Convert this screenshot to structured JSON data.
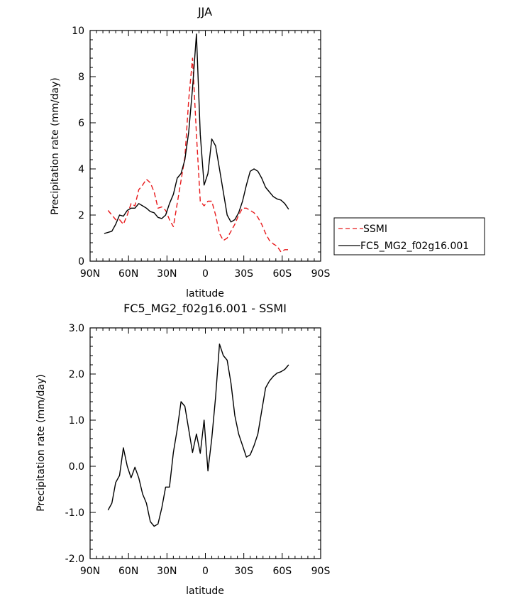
{
  "chart_data": [
    {
      "type": "line",
      "title": "JJA",
      "xlabel": "latitude",
      "ylabel": "Precipitation rate (mm/day)",
      "xlim": [
        90,
        -90
      ],
      "ylim": [
        0,
        10
      ],
      "x_ticks": [
        90,
        60,
        30,
        0,
        -30,
        -60,
        -90
      ],
      "x_tick_labels": [
        "90N",
        "60N",
        "30N",
        "0",
        "30S",
        "60S",
        "90S"
      ],
      "y_ticks": [
        0,
        2,
        4,
        6,
        8,
        10
      ],
      "y_tick_labels": [
        "0",
        "2",
        "4",
        "6",
        "8",
        "10"
      ],
      "legend_position": "right",
      "series": [
        {
          "name": "SSMI",
          "color": "#e8191b",
          "dash": "dashed",
          "x": [
            76,
            73,
            70,
            67,
            64,
            61,
            58,
            55,
            52,
            49,
            46,
            43,
            40,
            37,
            34,
            31,
            28,
            25,
            22,
            19,
            16,
            13,
            10,
            7,
            4,
            1,
            -2,
            -5,
            -8,
            -11,
            -14,
            -17,
            -20,
            -23,
            -26,
            -29,
            -32,
            -35,
            -38,
            -41,
            -44,
            -47,
            -50,
            -53,
            -56,
            -59,
            -62,
            -65
          ],
          "y": [
            2.2,
            2.0,
            1.8,
            1.8,
            1.6,
            2.0,
            2.5,
            2.4,
            3.1,
            3.3,
            3.55,
            3.4,
            3.0,
            2.3,
            2.35,
            2.2,
            1.8,
            1.5,
            2.5,
            3.5,
            4.5,
            7.0,
            8.8,
            5.5,
            2.6,
            2.4,
            2.6,
            2.6,
            2.0,
            1.2,
            0.9,
            1.0,
            1.3,
            1.6,
            2.0,
            2.3,
            2.3,
            2.2,
            2.1,
            1.9,
            1.6,
            1.2,
            0.9,
            0.75,
            0.65,
            0.4,
            0.5,
            0.5
          ]
        },
        {
          "name": "FC5_MG2_f02g16.001",
          "color": "#000000",
          "dash": "solid",
          "x": [
            79,
            76,
            73,
            70,
            67,
            64,
            61,
            58,
            55,
            52,
            49,
            46,
            43,
            40,
            37,
            34,
            31,
            28,
            25,
            22,
            19,
            16,
            13,
            10,
            7,
            4,
            1,
            -2,
            -5,
            -8,
            -11,
            -14,
            -17,
            -20,
            -23,
            -26,
            -29,
            -32,
            -35,
            -38,
            -41,
            -44,
            -47,
            -50,
            -53,
            -56,
            -59,
            -62,
            -65
          ],
          "y": [
            1.2,
            1.25,
            1.3,
            1.6,
            2.0,
            1.95,
            2.2,
            2.3,
            2.3,
            2.5,
            2.4,
            2.3,
            2.15,
            2.1,
            1.9,
            1.85,
            2.0,
            2.5,
            2.9,
            3.6,
            3.8,
            4.4,
            5.6,
            7.5,
            9.85,
            5.5,
            3.3,
            3.8,
            5.3,
            5.0,
            4.0,
            3.0,
            2.0,
            1.7,
            1.8,
            2.1,
            2.6,
            3.3,
            3.9,
            4.0,
            3.9,
            3.6,
            3.2,
            3.0,
            2.8,
            2.7,
            2.65,
            2.5,
            2.25
          ]
        }
      ]
    },
    {
      "type": "line",
      "title": "FC5_MG2_f02g16.001 - SSMI",
      "xlabel": "latitude",
      "ylabel": "Precipitation rate (mm/day)",
      "xlim": [
        90,
        -90
      ],
      "ylim": [
        -2,
        3
      ],
      "x_ticks": [
        90,
        60,
        30,
        0,
        -30,
        -60,
        -90
      ],
      "x_tick_labels": [
        "90N",
        "60N",
        "30N",
        "0",
        "30S",
        "60S",
        "90S"
      ],
      "y_ticks": [
        -2,
        -1,
        0,
        1,
        2,
        3
      ],
      "y_tick_labels": [
        "-2.0",
        "-1.0",
        "0.0",
        "1.0",
        "2.0",
        "3.0"
      ],
      "series": [
        {
          "color": "#000000",
          "dash": "solid",
          "x": [
            76,
            73,
            70,
            67,
            64,
            61,
            58,
            55,
            52,
            49,
            46,
            43,
            40,
            37,
            34,
            31,
            28,
            25,
            22,
            19,
            16,
            13,
            10,
            7,
            4,
            1,
            -2,
            -5,
            -8,
            -11,
            -14,
            -17,
            -20,
            -23,
            -26,
            -29,
            -32,
            -35,
            -38,
            -41,
            -44,
            -47,
            -50,
            -53,
            -56,
            -59,
            -62,
            -65
          ],
          "y": [
            -0.95,
            -0.8,
            -0.35,
            -0.2,
            0.4,
            0.0,
            -0.25,
            -0.02,
            -0.25,
            -0.6,
            -0.8,
            -1.2,
            -1.3,
            -1.25,
            -0.9,
            -0.45,
            -0.45,
            0.3,
            0.8,
            1.4,
            1.3,
            0.8,
            0.3,
            0.7,
            0.28,
            1.0,
            -0.1,
            0.6,
            1.5,
            2.65,
            2.4,
            2.3,
            1.8,
            1.1,
            0.7,
            0.45,
            0.2,
            0.25,
            0.45,
            0.7,
            1.2,
            1.7,
            1.85,
            1.95,
            2.02,
            2.05,
            2.1,
            2.2
          ]
        }
      ]
    }
  ]
}
